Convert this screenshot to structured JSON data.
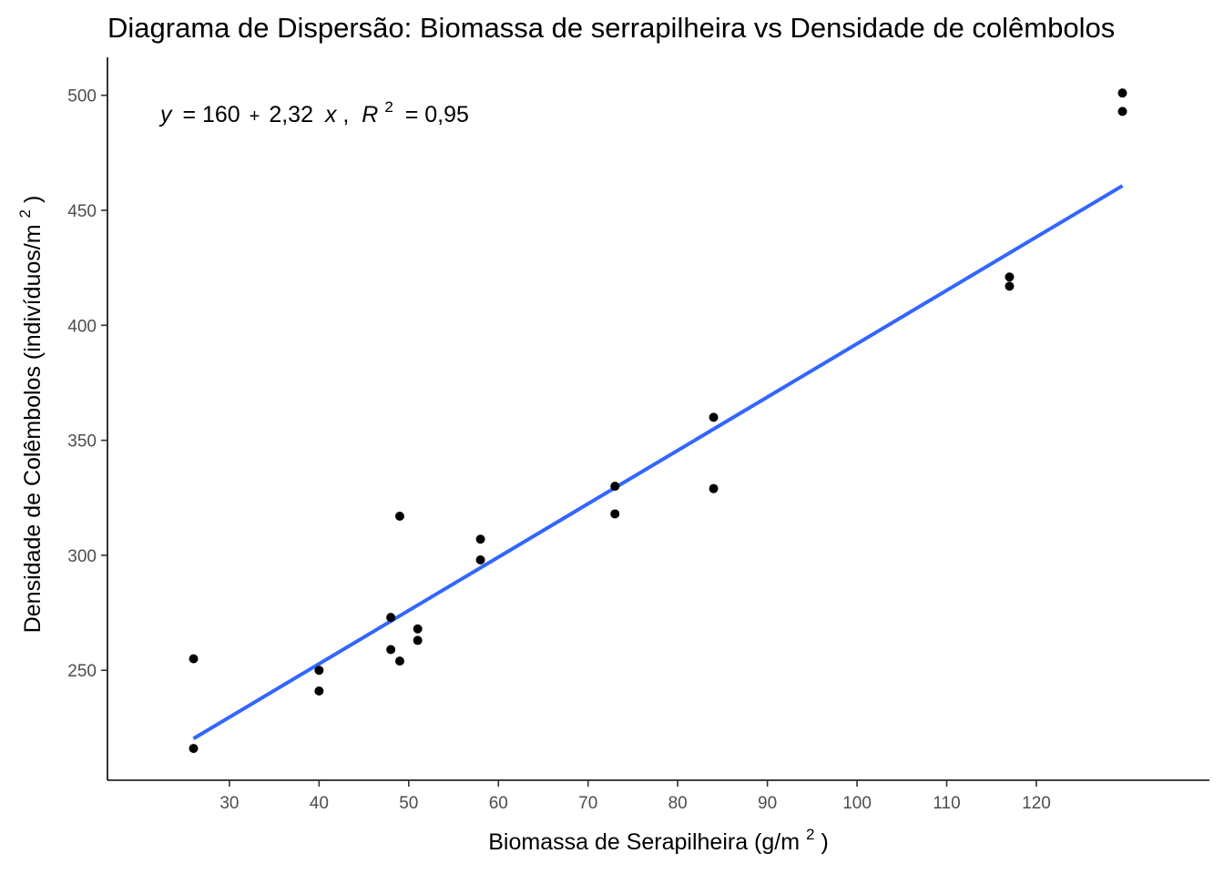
{
  "chart_data": {
    "type": "scatter",
    "title": "Diagrama de Dispersão: Biomassa de serrapilheira vs Densidade de colêmbolos",
    "xlabel": {
      "text": "Biomassa de Serapilheira (g/m",
      "sup": "2",
      "suffix": ")"
    },
    "ylabel": {
      "text": "Densidade de Colêmbolos (indivíduos/m",
      "sup": "2",
      "suffix": ")"
    },
    "xlim": [
      16.4,
      139.3
    ],
    "ylim": [
      202.2,
      516.5
    ],
    "x_ticks": [
      30,
      40,
      50,
      60,
      70,
      80,
      90,
      100,
      110,
      120
    ],
    "x_tick_labels": [
      "30",
      "40",
      "50",
      "60",
      "70",
      "80",
      "90",
      "100",
      "110",
      "120"
    ],
    "y_ticks": [
      250,
      300,
      350,
      400,
      450,
      500
    ],
    "y_tick_labels": [
      "250",
      "300",
      "350",
      "400",
      "450",
      "500"
    ],
    "grid": false,
    "points": [
      {
        "x": 26,
        "y": 255
      },
      {
        "x": 26,
        "y": 216
      },
      {
        "x": 40,
        "y": 250
      },
      {
        "x": 40,
        "y": 241
      },
      {
        "x": 48,
        "y": 273
      },
      {
        "x": 48,
        "y": 259
      },
      {
        "x": 49,
        "y": 317
      },
      {
        "x": 49,
        "y": 254
      },
      {
        "x": 51,
        "y": 268
      },
      {
        "x": 51,
        "y": 263
      },
      {
        "x": 58,
        "y": 307
      },
      {
        "x": 58,
        "y": 298
      },
      {
        "x": 73,
        "y": 330
      },
      {
        "x": 73,
        "y": 318
      },
      {
        "x": 84,
        "y": 360
      },
      {
        "x": 84,
        "y": 329
      },
      {
        "x": 117,
        "y": 421
      },
      {
        "x": 117,
        "y": 417
      },
      {
        "x": 129.6,
        "y": 501
      },
      {
        "x": 129.6,
        "y": 493
      }
    ],
    "regression": {
      "intercept": 160,
      "slope": 2.32,
      "x_range": [
        26,
        129.6
      ],
      "color": "#3366ff"
    },
    "annotation": {
      "y_var": "y",
      "eq": "= 160",
      "plus": "+",
      "rest": "2,32",
      "x_var": "x",
      "comma": ",",
      "r_var": "R",
      "r_sup": "2",
      "r_val": "= 0,95"
    },
    "point_color": "#000000"
  }
}
